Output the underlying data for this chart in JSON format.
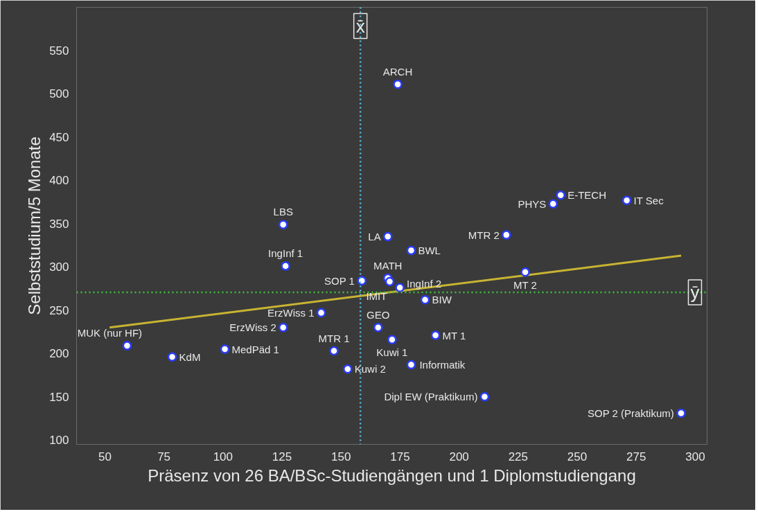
{
  "chart_data": {
    "type": "scatter",
    "xlabel": "Präsenz von 26 BA/BSc-Studiengängen und 1 Diplomstudiengang",
    "ylabel": "Selbststudium/5 Monate",
    "xlim": [
      38,
      305
    ],
    "ylim": [
      95,
      600
    ],
    "xticks": [
      50,
      75,
      100,
      125,
      150,
      175,
      200,
      225,
      250,
      275,
      300
    ],
    "yticks": [
      100,
      150,
      200,
      250,
      300,
      350,
      400,
      450,
      500,
      550
    ],
    "grid": false,
    "series": [
      {
        "marker": "circle",
        "color": "#ffffff",
        "x": [
          174,
          125.5,
          126.5,
          169.8,
          179.7,
          220,
          239.8,
          243,
          271,
          228,
          158.8,
          169.8,
          170.6,
          174.9,
          185.6,
          141.6,
          125.5,
          165.7,
          190,
          171.6,
          147,
          59.4,
          78.5,
          100.8,
          152.8,
          179.7,
          210.8,
          294
        ],
        "values": [
          511,
          349,
          301,
          335,
          319,
          337,
          373,
          383,
          377,
          294,
          284,
          287,
          283,
          276,
          262,
          247,
          230,
          230,
          221,
          216,
          203,
          209,
          196,
          205,
          182,
          187,
          150,
          131
        ]
      },
      {
        "type": "line",
        "color": "#c8b432",
        "x": [
          52,
          294
        ],
        "values": [
          230,
          313
        ],
        "line_style": "solid"
      }
    ],
    "ref_lines": [
      {
        "axis": "x",
        "value": 158.2,
        "label": "x̄",
        "color": "#5bc0eb",
        "line_style": "dotted"
      },
      {
        "axis": "y",
        "value": 270.6,
        "label": "ȳ",
        "color": "#3cc83c",
        "line_style": "dotted"
      }
    ],
    "annotations": [
      {
        "text": "ARCH",
        "x": 174,
        "y": 511
      },
      {
        "text": "LBS",
        "x": 125.5,
        "y": 349
      },
      {
        "text": "IngInf 1",
        "x": 126.5,
        "y": 301
      },
      {
        "text": "LA",
        "x": 169.8,
        "y": 335
      },
      {
        "text": "BWL",
        "x": 179.7,
        "y": 319
      },
      {
        "text": "MTR 2",
        "x": 220,
        "y": 337
      },
      {
        "text": "PHYS",
        "x": 239.8,
        "y": 373
      },
      {
        "text": "E-TECH",
        "x": 243,
        "y": 383
      },
      {
        "text": "IT Sec",
        "x": 271,
        "y": 377
      },
      {
        "text": "MT 2",
        "x": 228,
        "y": 294
      },
      {
        "text": "SOP 1",
        "x": 158.8,
        "y": 284
      },
      {
        "text": "MATH",
        "x": 169.8,
        "y": 287
      },
      {
        "text": "IMIT",
        "x": 170.6,
        "y": 283
      },
      {
        "text": "IngInf 2",
        "x": 174.9,
        "y": 276
      },
      {
        "text": "BIW",
        "x": 185.6,
        "y": 262
      },
      {
        "text": "ErzWiss 1",
        "x": 141.6,
        "y": 247
      },
      {
        "text": "ErzWiss 2",
        "x": 125.5,
        "y": 230
      },
      {
        "text": "GEO",
        "x": 165.7,
        "y": 230
      },
      {
        "text": "MT 1",
        "x": 190,
        "y": 221
      },
      {
        "text": "Kuwi 1",
        "x": 171.6,
        "y": 216
      },
      {
        "text": "MTR 1",
        "x": 147,
        "y": 203
      },
      {
        "text": "MUK (nur HF)",
        "x": 59.4,
        "y": 209
      },
      {
        "text": "KdM",
        "x": 78.5,
        "y": 196
      },
      {
        "text": "MedPäd 1",
        "x": 100.8,
        "y": 205
      },
      {
        "text": "Kuwi 2",
        "x": 152.8,
        "y": 182
      },
      {
        "text": "Informatik",
        "x": 179.7,
        "y": 187
      },
      {
        "text": "Dipl EW (Praktikum)",
        "x": 210.8,
        "y": 150
      },
      {
        "text": "SOP 2 (Praktikum)",
        "x": 294,
        "y": 131
      }
    ]
  }
}
